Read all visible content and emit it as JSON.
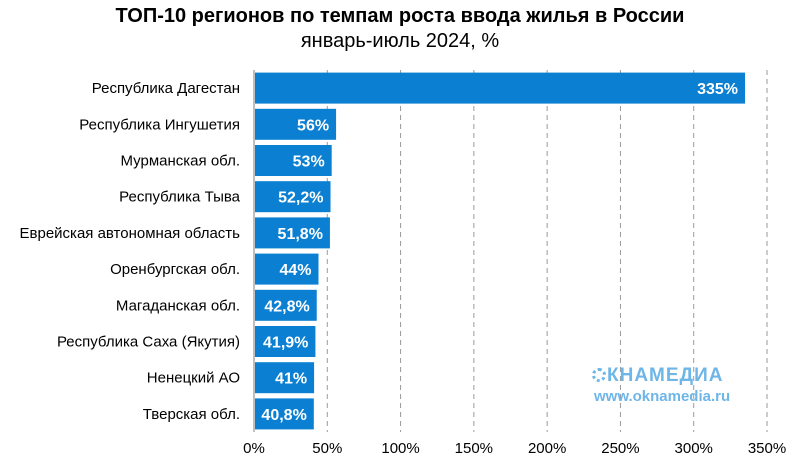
{
  "chart_data": {
    "type": "bar",
    "orientation": "horizontal",
    "title": "ТОП-10 регионов по темпам роста ввода жилья в России",
    "subtitle": "январь-июль 2024, %",
    "categories": [
      "Республика Дагестан",
      "Республика Ингушетия",
      "Мурманская обл.",
      "Республика Тыва",
      "Еврейская автономная область",
      "Оренбургская обл.",
      "Магаданская обл.",
      "Республика Саха (Якутия)",
      "Ненецкий АО",
      "Тверская обл."
    ],
    "values": [
      335,
      56,
      53,
      52.2,
      51.8,
      44,
      42.8,
      41.9,
      41,
      40.8
    ],
    "value_labels": [
      "335%",
      "56%",
      "53%",
      "52,2%",
      "51,8%",
      "44%",
      "42,8%",
      "41,9%",
      "41%",
      "40,8%"
    ],
    "xlim": [
      0,
      350
    ],
    "x_ticks": [
      0,
      50,
      100,
      150,
      200,
      250,
      300,
      350
    ],
    "x_tick_labels": [
      "0%",
      "50%",
      "100%",
      "150%",
      "200%",
      "250%",
      "300%",
      "350%"
    ],
    "grid": "vertical-dashed",
    "bar_color": "#0b7fd1"
  },
  "watermark": {
    "logo": "КНАМЕДИА",
    "url": "www.oknamedia.ru"
  }
}
